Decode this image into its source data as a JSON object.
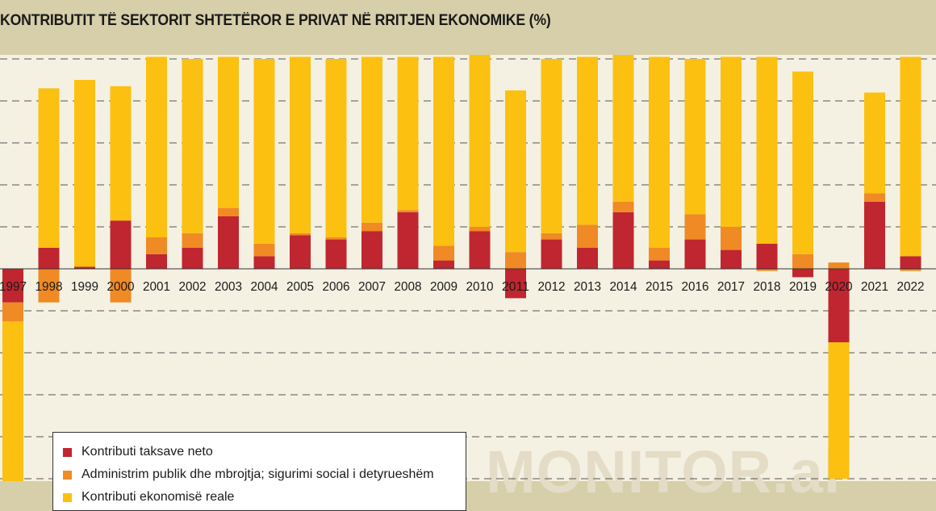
{
  "title": "KONTRIBUTIT TË SEKTORIT SHTETËROR E PRIVAT NË RRITJEN EKONOMIKE (%)",
  "watermark": "MONITOR.al",
  "colors": {
    "net_taxes": "#c0262f",
    "public_admin": "#f08a24",
    "real_economy": "#fcc011",
    "plot_bg": "#f4f1e3",
    "frame_bg": "#d7cfa9",
    "grid": "#555555"
  },
  "legend": {
    "items": [
      {
        "label": "Kontributi taksave neto",
        "color": "#c0262f"
      },
      {
        "label": "Administrim publik dhe mbrojtja; sigurimi social i detyrueshëm",
        "color": "#f08a24"
      },
      {
        "label": "Kontributi ekonomisë reale",
        "color": "#fcc011"
      }
    ]
  },
  "chart_data": {
    "type": "bar",
    "stacked": true,
    "title": "KONTRIBUTIT TË SEKTORIT SHTETËROR E PRIVAT NË RRITJEN EKONOMIKE (%)",
    "categories": [
      "1997",
      "1998",
      "1999",
      "2000",
      "2001",
      "2002",
      "2003",
      "2004",
      "2005",
      "2006",
      "2007",
      "2008",
      "2009",
      "2010",
      "2011",
      "2012",
      "2013",
      "2014",
      "2015",
      "2016",
      "2017",
      "2018",
      "2019",
      "2020",
      "2021",
      "2022"
    ],
    "series": [
      {
        "name": "Kontributi taksave neto",
        "color": "#c0262f",
        "values": [
          -0.8,
          0.5,
          0.05,
          1.15,
          0.35,
          0.5,
          1.25,
          0.3,
          0.8,
          0.7,
          0.9,
          1.35,
          0.2,
          0.9,
          -0.7,
          0.7,
          0.5,
          1.35,
          0.2,
          0.7,
          0.45,
          0.6,
          -0.2,
          -1.75,
          1.6,
          0.3
        ]
      },
      {
        "name": "Administrim publik dhe mbrojtja; sigurimi social i detyrueshëm",
        "color": "#f08a24",
        "values": [
          -0.45,
          -0.8,
          0.0,
          -0.8,
          0.4,
          0.35,
          0.2,
          0.3,
          0.05,
          0.05,
          0.2,
          0.05,
          0.35,
          0.1,
          0.4,
          0.15,
          0.55,
          0.25,
          0.3,
          0.6,
          0.55,
          -0.05,
          0.35,
          0.15,
          0.2,
          -0.05
        ]
      },
      {
        "name": "Kontributi ekonomisë reale",
        "color": "#fcc011",
        "values": [
          -4.0,
          3.8,
          4.45,
          3.2,
          4.3,
          4.15,
          3.6,
          4.4,
          4.2,
          4.25,
          3.95,
          3.65,
          4.5,
          4.1,
          3.85,
          4.15,
          4.0,
          3.5,
          4.55,
          3.7,
          4.05,
          4.45,
          4.35,
          -3.25,
          2.4,
          4.75
        ]
      }
    ],
    "ylim": [
      -5.2,
      5.1
    ],
    "grid": true,
    "grid_step": 1,
    "legend_position": "bottom-left",
    "xlabel": "",
    "ylabel": ""
  }
}
